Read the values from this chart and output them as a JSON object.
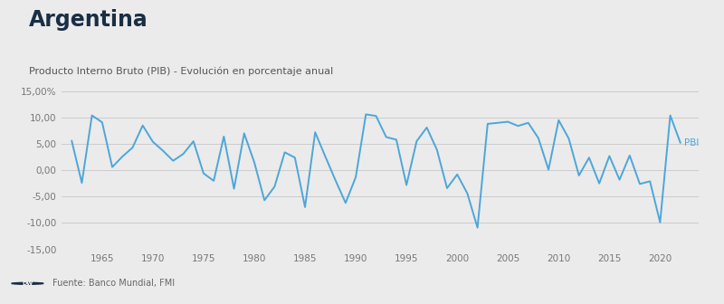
{
  "title": "Argentina",
  "subtitle": "Producto Interno Bruto (PIB) - Evolución en porcentaje anual",
  "source": "Fuente: Banco Mundial, FMI",
  "legend_label": "PBI",
  "line_color": "#4da6d9",
  "bg_color": "#ebebeb",
  "plot_bg_color": "#ebebeb",
  "grid_color": "#cccccc",
  "title_color": "#1a2e44",
  "subtitle_color": "#555555",
  "tick_color": "#777777",
  "ylim": [
    -15,
    15
  ],
  "yticks": [
    -15,
    -10,
    -5,
    0,
    5,
    10,
    15
  ],
  "years": [
    1962,
    1963,
    1964,
    1965,
    1966,
    1967,
    1968,
    1969,
    1970,
    1971,
    1972,
    1973,
    1974,
    1975,
    1976,
    1977,
    1978,
    1979,
    1980,
    1981,
    1982,
    1983,
    1984,
    1985,
    1986,
    1987,
    1988,
    1989,
    1990,
    1991,
    1992,
    1993,
    1994,
    1995,
    1996,
    1997,
    1998,
    1999,
    2000,
    2001,
    2002,
    2003,
    2004,
    2005,
    2006,
    2007,
    2008,
    2009,
    2010,
    2011,
    2012,
    2013,
    2014,
    2015,
    2016,
    2017,
    2018,
    2019,
    2020,
    2021,
    2022
  ],
  "values": [
    5.6,
    -2.4,
    10.4,
    9.1,
    0.6,
    2.6,
    4.3,
    8.5,
    5.4,
    3.7,
    1.8,
    3.1,
    5.5,
    -0.6,
    -2.0,
    6.4,
    -3.5,
    7.0,
    1.5,
    -5.7,
    -3.1,
    3.4,
    2.4,
    -7.0,
    7.2,
    2.6,
    -1.9,
    -6.2,
    -1.3,
    10.6,
    10.3,
    6.3,
    5.8,
    -2.8,
    5.5,
    8.1,
    3.9,
    -3.4,
    -0.8,
    -4.4,
    -10.9,
    8.8,
    9.0,
    9.2,
    8.4,
    9.0,
    6.1,
    0.1,
    9.5,
    6.0,
    -1.0,
    2.4,
    -2.5,
    2.7,
    -1.8,
    2.8,
    -2.6,
    -2.1,
    -9.9,
    10.4,
    5.2
  ]
}
